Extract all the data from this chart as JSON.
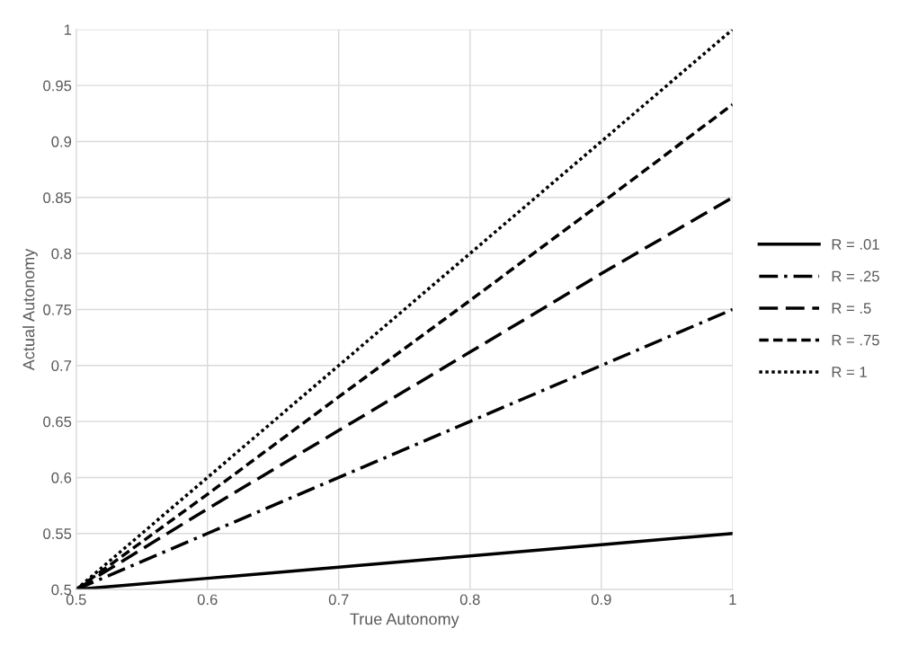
{
  "chart_data": {
    "type": "line",
    "xlabel": "True Autonomy",
    "ylabel": "Actual Autonomy",
    "x": [
      0.5,
      0.6,
      0.7,
      0.8,
      0.9,
      1.0
    ],
    "series": [
      {
        "name": "R = .01",
        "color": "#000000",
        "line_style": "solid",
        "values": [
          0.5,
          0.51,
          0.52,
          0.53,
          0.54,
          0.55
        ]
      },
      {
        "name": "R = .25",
        "color": "#000000",
        "line_style": "dashdot",
        "values": [
          0.5,
          0.55,
          0.6,
          0.65,
          0.7,
          0.75
        ]
      },
      {
        "name": "R = .5",
        "color": "#000000",
        "line_style": "longdash",
        "values": [
          0.5,
          0.572,
          0.642,
          0.712,
          0.782,
          0.85
        ]
      },
      {
        "name": "R = .75",
        "color": "#000000",
        "line_style": "dashed",
        "values": [
          0.5,
          0.585,
          0.672,
          0.758,
          0.845,
          0.933
        ]
      },
      {
        "name": "R = 1",
        "color": "#000000",
        "line_style": "dotted",
        "values": [
          0.5,
          0.6,
          0.7,
          0.8,
          0.9,
          1.0
        ]
      }
    ],
    "xlim": [
      0.5,
      1
    ],
    "xticks": [
      0.5,
      0.6,
      0.7,
      0.8,
      0.9,
      1
    ],
    "ylim": [
      0.5,
      1
    ],
    "yticks": [
      0.5,
      0.55,
      0.6,
      0.65,
      0.7,
      0.75,
      0.8,
      0.85,
      0.9,
      0.95,
      1
    ],
    "grid": true,
    "legend": "right",
    "marker": "none"
  }
}
